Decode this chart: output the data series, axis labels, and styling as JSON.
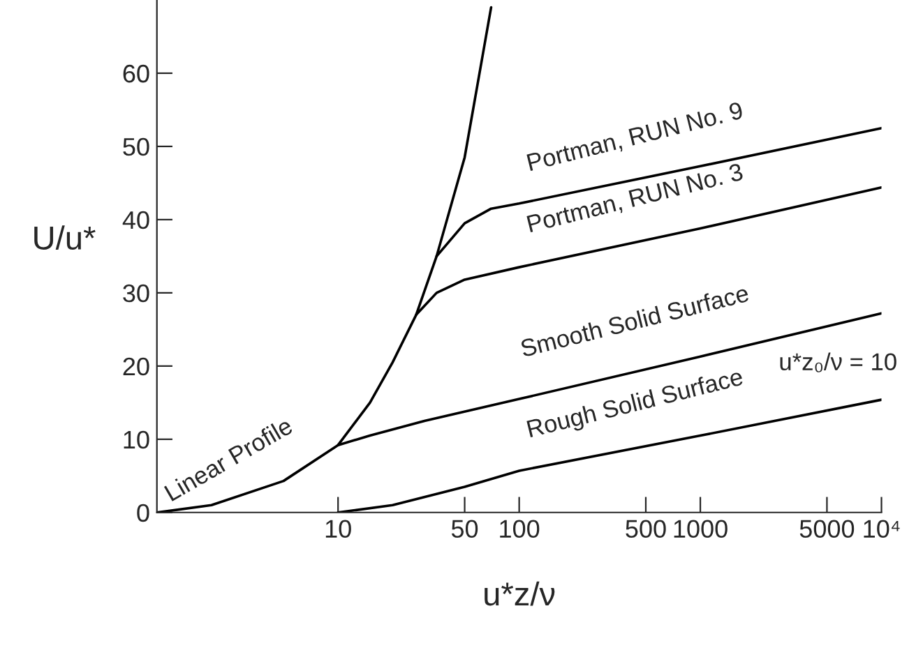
{
  "chart_data": {
    "type": "line",
    "xlabel": "u*z/ν",
    "ylabel": "U/u*",
    "log": "x",
    "grid": false,
    "legend": false,
    "marker": "none",
    "line_style": "solid",
    "xlim": [
      1,
      10000
    ],
    "xticks": [
      10,
      50,
      100,
      500,
      1000,
      5000,
      {
        "value": 10000,
        "label": "10⁴"
      }
    ],
    "ylim": [
      0,
      70
    ],
    "yticks": [
      0,
      10,
      20,
      30,
      40,
      50,
      60
    ],
    "series": [
      {
        "color": "#000000",
        "x": [
          1,
          2,
          5,
          10,
          15,
          20,
          27,
          35,
          50,
          70
        ],
        "values": [
          0,
          1,
          4.3,
          9.2,
          15,
          20.5,
          27,
          35,
          48.5,
          69
        ]
      },
      {
        "color": "#000000",
        "x": [
          10,
          15,
          30,
          100,
          1000,
          10000
        ],
        "values": [
          9.2,
          10.5,
          12.5,
          15.5,
          21.3,
          27.2
        ]
      },
      {
        "color": "#000000",
        "x": [
          10,
          20,
          50,
          100,
          1000,
          10000
        ],
        "values": [
          0,
          1,
          3.5,
          5.7,
          10.5,
          15.4
        ]
      },
      {
        "color": "#000000",
        "x": [
          27,
          35,
          50,
          100,
          1000,
          10000
        ],
        "values": [
          27,
          30,
          31.8,
          33.5,
          38.8,
          44.4
        ]
      },
      {
        "color": "#000000",
        "x": [
          35,
          50,
          70,
          100,
          1000,
          10000
        ],
        "values": [
          35,
          39.5,
          41.5,
          42.2,
          47.3,
          52.5
        ]
      }
    ],
    "annotations": [
      "Linear Profile",
      "Smooth Solid Surface",
      "Rough Solid Surface",
      "u*z₀/ν = 10",
      "Portman, RUN No. 3",
      "Portman, RUN No. 9"
    ]
  }
}
